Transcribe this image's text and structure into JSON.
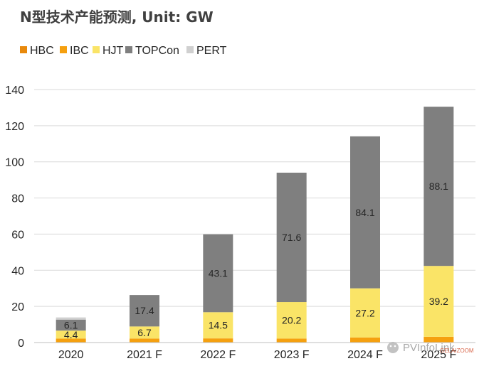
{
  "chart_data": {
    "type": "bar",
    "stacked": true,
    "title": "N型技术产能预测, Unit: GW",
    "xlabel": "",
    "ylabel": "",
    "ylim": [
      0,
      140
    ],
    "yticks": [
      0,
      20,
      40,
      60,
      80,
      100,
      120,
      140
    ],
    "grid": true,
    "legend_position": "top-left",
    "categories": [
      "2020",
      "2021 F",
      "2022 F",
      "2023 F",
      "2024 F",
      "2025 F"
    ],
    "series": [
      {
        "name": "HBC",
        "color": "#E8890C",
        "values": [
          0,
          0,
          0,
          0,
          0,
          0
        ],
        "labels": [
          null,
          null,
          null,
          null,
          null,
          null
        ]
      },
      {
        "name": "IBC",
        "color": "#F5A00F",
        "values": [
          2.2,
          2.2,
          2.3,
          2.2,
          2.8,
          3.2
        ],
        "labels": [
          null,
          null,
          null,
          null,
          null,
          null
        ]
      },
      {
        "name": "HJT",
        "color": "#FAE467",
        "values": [
          4.4,
          6.7,
          14.5,
          20.2,
          27.2,
          39.2
        ],
        "labels": [
          "4.4",
          "6.7",
          "14.5",
          "20.2",
          "27.2",
          "39.2"
        ]
      },
      {
        "name": "TOPCon",
        "color": "#7F7F7F",
        "values": [
          6.1,
          17.4,
          43.1,
          71.6,
          84.1,
          88.1
        ],
        "labels": [
          "6.1",
          "17.4",
          "43.1",
          "71.6",
          "84.1",
          "88.1"
        ]
      },
      {
        "name": "PERT",
        "color": "#D0D0D0",
        "values": [
          1.2,
          0,
          0,
          0,
          0,
          0
        ],
        "labels": [
          null,
          null,
          null,
          null,
          null,
          null
        ]
      }
    ]
  },
  "watermark": {
    "brand": "PVInfoLink",
    "site": "GELAIZOOM"
  }
}
